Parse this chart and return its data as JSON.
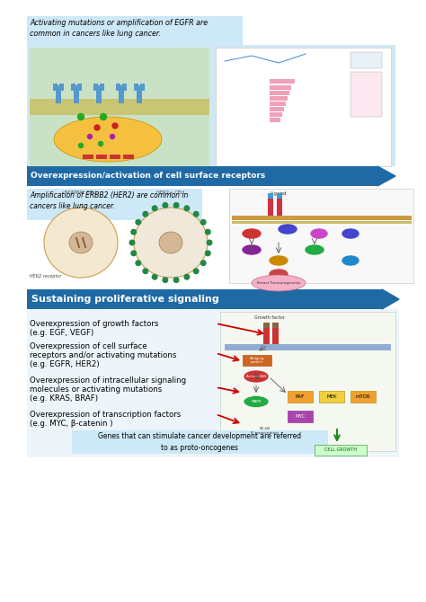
{
  "bg_color": "#ffffff",
  "s1_caption": "Activating mutations or amplification of EGFR are\ncommon in cancers like lung cancer.",
  "s1_caption_bg": "#cde8f7",
  "s1_banner": "Overexpression/activation of cell surface receptors",
  "s1_banner_bg": "#1f6aa5",
  "s1_banner_fg": "#ffffff",
  "s2_caption": "Amplification of ERBB2 (HER2) are common in\ncancers like lung cancer.",
  "s2_caption_bg": "#cde8f7",
  "s3_header": "Sustaining proliferative signaling",
  "s3_header_bg": "#1f6aa5",
  "s3_header_fg": "#ffffff",
  "s3_bullets": [
    [
      "Overexpression of growth factors",
      "(e.g. EGF, VEGF)"
    ],
    [
      "Overexpression of cell surface",
      "receptors and/or activating mutations",
      "(e.g. EGFR, HER2)"
    ],
    [
      "Overexpression of intracellular signaling",
      "molecules or activating mutations",
      "(e.g. KRAS, BRAF)"
    ],
    [
      "Overexpression of transcription factors",
      "(e.g. MYC, β-catenin )"
    ]
  ],
  "s3_footer": "Genes that can stimulate cancer development are referred\nto as proto-oncogenes",
  "s3_footer_bg": "#cde8f7",
  "arrow_color": "#cc0000"
}
